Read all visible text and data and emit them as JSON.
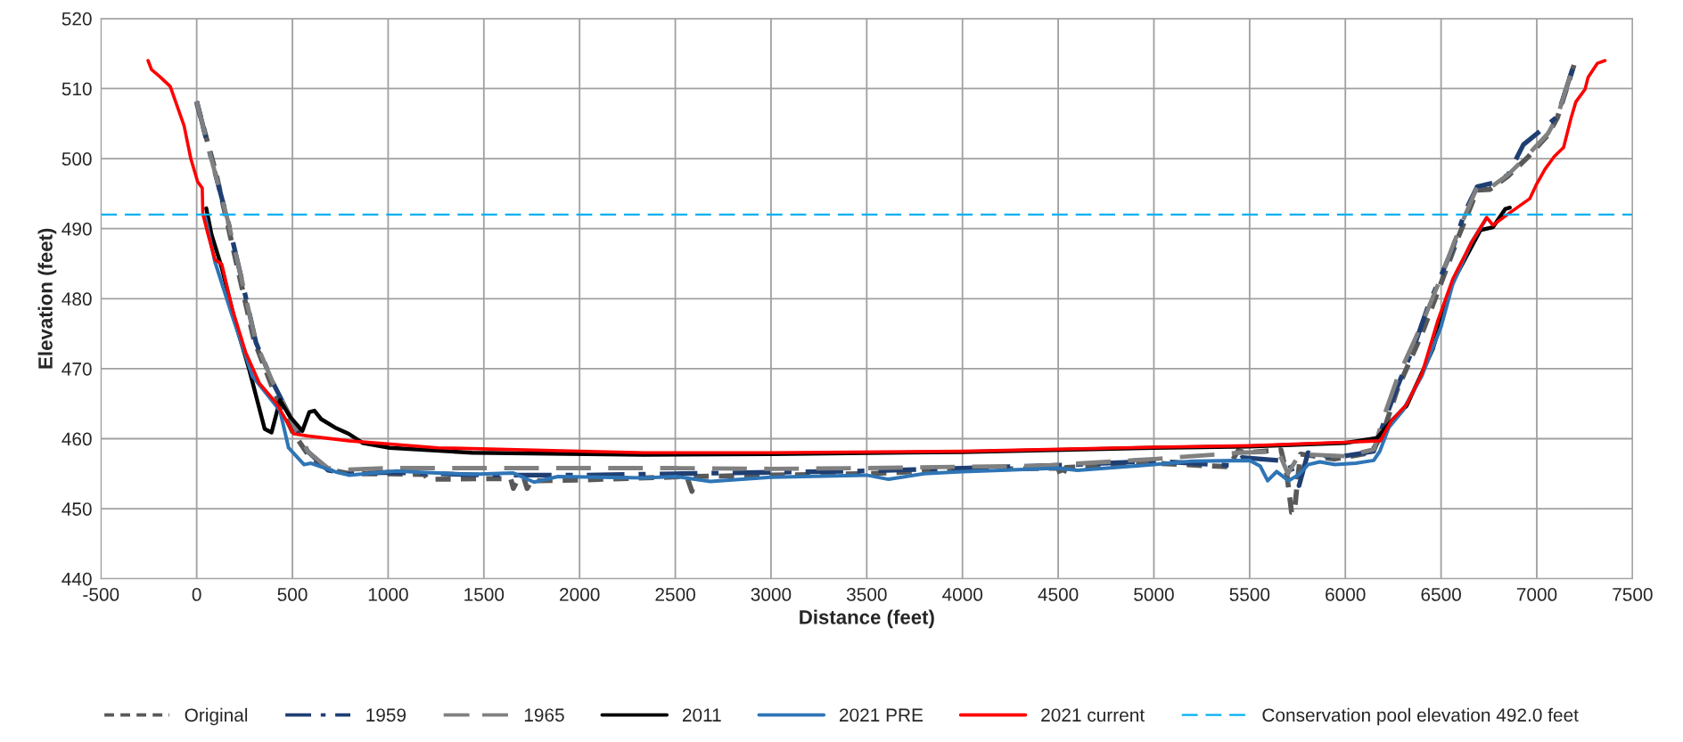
{
  "chart_data": {
    "type": "line",
    "xlabel": "Distance (feet)",
    "ylabel": "Elevation (feet)",
    "xlim": [
      -500,
      7500
    ],
    "xticks": [
      -500,
      0,
      500,
      1000,
      1500,
      2000,
      2500,
      3000,
      3500,
      4000,
      4500,
      5000,
      5500,
      6000,
      6500,
      7000,
      7500
    ],
    "ylim": [
      440,
      520
    ],
    "yticks": [
      440,
      450,
      460,
      470,
      480,
      490,
      500,
      510,
      520
    ],
    "grid": true,
    "legend": "bottom",
    "marker": "none",
    "ref_lines": [
      {
        "axis": "y",
        "value": 492,
        "label": "Conservation pool elevation 492.0 feet",
        "color": "#00b0f0",
        "line_style": "dashed"
      }
    ],
    "series": [
      {
        "name": "Original",
        "color": "#595959",
        "line_style": "dotted",
        "x": [
          0,
          100,
          200,
          300,
          400,
          500,
          600,
          700,
          800,
          1000,
          1190,
          1206,
          1500,
          1640,
          1654,
          1680,
          1710,
          1726,
          1750,
          2000,
          2560,
          2587,
          2610,
          3000,
          3500,
          4000,
          4500,
          4517,
          4540,
          5000,
          5390,
          5440,
          5477,
          5664,
          5695,
          5719,
          5734,
          5750,
          5766,
          5945,
          6133,
          6195,
          6271,
          6400,
          6497,
          6593,
          6689,
          6754,
          6850,
          6946,
          7059,
          7107,
          7196
        ],
        "values": [
          508,
          498,
          486,
          474,
          467,
          461,
          457,
          455.5,
          455,
          455,
          454.9,
          454.2,
          454.3,
          454.3,
          452.9,
          454.3,
          454.3,
          452.9,
          454,
          454.1,
          454.6,
          452.5,
          454.6,
          454.8,
          455,
          455.6,
          455.8,
          454.4,
          455.9,
          456.5,
          456,
          458.3,
          458,
          458.4,
          454.8,
          449.5,
          449.5,
          454,
          457.8,
          457.1,
          458,
          460.7,
          467,
          475,
          482,
          489,
          495.5,
          495.6,
          497.5,
          500,
          503.4,
          505.8,
          513.5
        ]
      },
      {
        "name": "1959",
        "color": "#1f3f73",
        "line_style": "dashdot",
        "x": [
          0,
          77,
          167,
          238,
          310,
          400,
          489,
          579,
          686,
          794,
          1000,
          1500,
          2000,
          2500,
          3000,
          3500,
          4000,
          4500,
          5000,
          5396,
          5460,
          5700,
          5758,
          5805,
          5945,
          6148,
          6191,
          6255,
          6367,
          6432,
          6561,
          6625,
          6689,
          6786,
          6850,
          6930,
          7011,
          7107,
          7196
        ],
        "values": [
          508.2,
          499.9,
          490.7,
          482.4,
          473.7,
          467.9,
          463.1,
          458.2,
          455.5,
          455,
          455.2,
          454.8,
          454.8,
          455,
          455.2,
          455.4,
          455.8,
          456.2,
          456.8,
          456.2,
          457.3,
          456.8,
          453.3,
          458,
          457.3,
          458.2,
          461.5,
          466.3,
          473.8,
          478.9,
          487.2,
          492.4,
          496,
          496.6,
          497.7,
          502,
          503.8,
          506,
          513.6
        ]
      },
      {
        "name": "1965",
        "color": "#808080",
        "line_style": "dashed",
        "x": [
          0,
          77,
          167,
          238,
          310,
          400,
          489,
          579,
          686,
          794,
          1000,
          1500,
          2000,
          2500,
          3000,
          3500,
          4000,
          4390,
          5000,
          5450,
          5650,
          5700,
          5760,
          6000,
          6150,
          6191,
          6271,
          6400,
          6497,
          6593,
          6689,
          6754,
          6850,
          6946,
          7059,
          7107,
          7196
        ],
        "values": [
          508.2,
          499.9,
          490.7,
          482.4,
          473.7,
          467.9,
          463.1,
          458.2,
          455.8,
          455.6,
          455.8,
          455.8,
          455.8,
          455.8,
          455.7,
          455.8,
          456,
          456.1,
          457.1,
          458,
          458.2,
          455,
          457.8,
          457.5,
          458.5,
          462.4,
          468.6,
          476.4,
          482.9,
          489.8,
          496,
          495.8,
          497.7,
          500.3,
          503.6,
          506,
          513.6
        ]
      },
      {
        "name": "2011",
        "color": "#000000",
        "line_style": "solid",
        "x": [
          50,
          77,
          131,
          202,
          274,
          355,
          391,
          435,
          489,
          552,
          588,
          615,
          650,
          722,
          794,
          866,
          1009,
          1439,
          2335,
          3000,
          4000,
          5000,
          5500,
          6000,
          6166,
          6246,
          6320,
          6457,
          6561,
          6706,
          6771,
          6835,
          6859
        ],
        "values": [
          492.9,
          489.2,
          484.4,
          476.6,
          469.9,
          461.4,
          460.9,
          465.5,
          463.1,
          461.1,
          463.8,
          464,
          462.8,
          461.6,
          460.7,
          459.4,
          458.7,
          458,
          457.7,
          457.8,
          458.1,
          458.7,
          458.9,
          459.4,
          460.1,
          462.7,
          464.7,
          472.8,
          482.4,
          489.8,
          490.2,
          492.8,
          493
        ]
      },
      {
        "name": "2021 PRE",
        "color": "#2e75b6",
        "line_style": "solid",
        "x": [
          45,
          95,
          185,
          292,
          435,
          480,
          561,
          597,
          722,
          794,
          1045,
          1170,
          1439,
          1654,
          1762,
          1887,
          2335,
          2500,
          2683,
          3000,
          3500,
          3614,
          3800,
          4000,
          4200,
          4500,
          4600,
          5000,
          5200,
          5500,
          5555,
          5594,
          5641,
          5703,
          5758,
          5805,
          5867,
          5945,
          6055,
          6148,
          6180,
          6227,
          6300,
          6400,
          6500,
          6560,
          6658,
          6738
        ],
        "values": [
          491.6,
          485.3,
          477.6,
          468.9,
          464,
          458.7,
          456.3,
          456.5,
          455.3,
          454.8,
          455.4,
          455.2,
          454.9,
          455.1,
          453.8,
          454.6,
          454.4,
          454.6,
          453.9,
          454.5,
          454.8,
          454.2,
          455,
          455.3,
          455.5,
          455.8,
          455.5,
          456.3,
          456.8,
          456.9,
          456.1,
          454,
          455.3,
          454,
          454.9,
          456.3,
          456.7,
          456.3,
          456.5,
          456.9,
          458.2,
          461.6,
          464,
          469,
          476,
          482,
          488,
          491.5
        ]
      },
      {
        "name": "2021 current",
        "color": "#ff0000",
        "line_style": "solid",
        "x": [
          -254,
          -236,
          -192,
          -138,
          -66,
          -30,
          5,
          29,
          32,
          59,
          95,
          131,
          185,
          256,
          328,
          418,
          507,
          579,
          794,
          1260,
          2335,
          3000,
          4000,
          5000,
          5500,
          6000,
          6183,
          6239,
          6320,
          6400,
          6481,
          6561,
          6658,
          6738,
          6771,
          6851,
          6964,
          6996,
          7043,
          7091,
          7140,
          7180,
          7204,
          7252,
          7268,
          7316,
          7356
        ],
        "values": [
          514,
          512.7,
          511.7,
          510.3,
          504.7,
          499.9,
          496.7,
          495.8,
          492.1,
          489.2,
          485.6,
          484.9,
          478.6,
          472.3,
          467.9,
          465,
          460.7,
          460.4,
          459.7,
          458.7,
          458,
          458,
          458.2,
          458.8,
          459,
          459.5,
          459.7,
          462.5,
          464.9,
          469.3,
          476.7,
          482.8,
          488,
          491.6,
          490.5,
          492.1,
          494.3,
          496.2,
          498.5,
          500.3,
          501.6,
          505.9,
          508.1,
          509.9,
          511.6,
          513.6,
          514
        ]
      }
    ]
  }
}
